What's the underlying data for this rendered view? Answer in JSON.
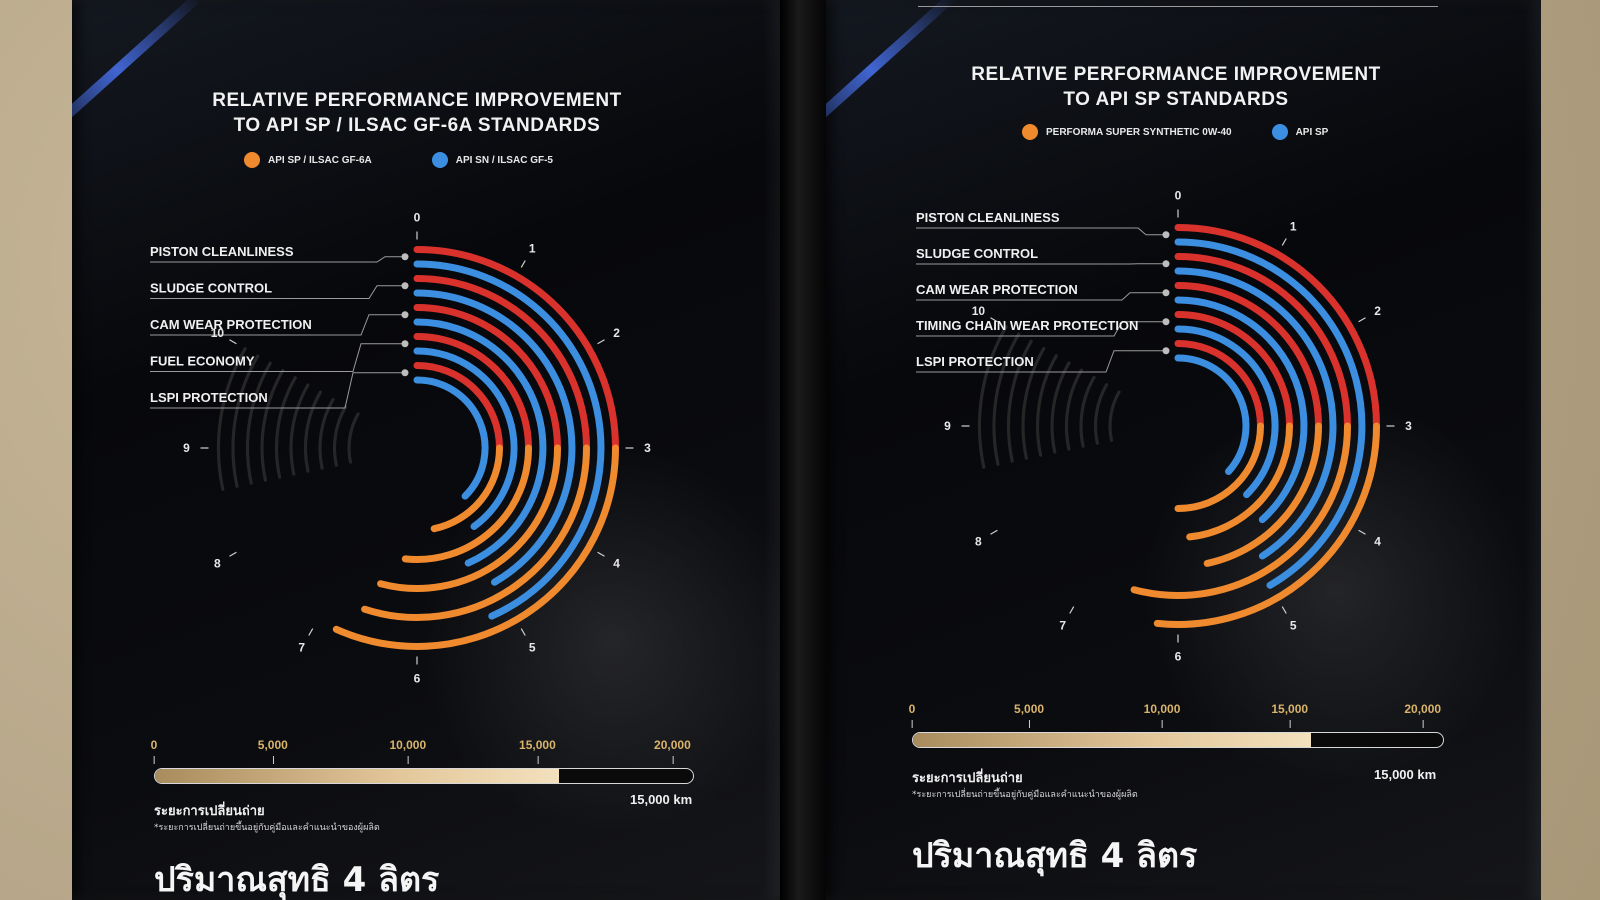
{
  "colors": {
    "orange": "#f08a2e",
    "blue": "#3c8fe0",
    "red": "#d9322c",
    "background": "#0b0c10"
  },
  "chart_data": [
    {
      "type": "radial-bar",
      "title_line1": "RELATIVE PERFORMANCE IMPROVEMENT",
      "title_line2": "TO API SP / ILSAC GF-6A STANDARDS",
      "legend": [
        {
          "label": "API SP / ILSAC GF-6A",
          "color": "#f08a2e"
        },
        {
          "label": "API SN / ILSAC GF-5",
          "color": "#3c8fe0"
        }
      ],
      "scale_max": 10,
      "ticks": [
        "0",
        "1",
        "2",
        "3",
        "4",
        "5",
        "6",
        "7",
        "8",
        "9",
        "10"
      ],
      "categories": [
        "PISTON CLEANLINESS",
        "SLUDGE CONTROL",
        "CAM WEAR PROTECTION",
        "FUEL ECONOMY",
        "LSPI PROTECTION"
      ],
      "series": [
        {
          "name": "API SP / ILSAC GF-6A",
          "values": [
            6.8,
            6.6,
            6.5,
            6.2,
            5.6
          ]
        },
        {
          "name": "API SN / ILSAC GF-5",
          "values": [
            5.2,
            5.0,
            5.2,
            4.8,
            4.5
          ]
        }
      ],
      "drain_interval": {
        "ticks": [
          "0",
          "5,000",
          "10,000",
          "15,000",
          "20,000"
        ],
        "max": 20000,
        "value": 15000,
        "caption": "ระยะการเปลี่ยนถ่าย",
        "note": "*ระยะการเปลี่ยนถ่ายขึ้นอยู่กับคู่มือและคำแนะนำของผู้ผลิต",
        "value_label": "15,000 km"
      },
      "footer": "ปริมาณสุทธิ 4 ลิตร"
    },
    {
      "type": "radial-bar",
      "title_line1": "RELATIVE PERFORMANCE IMPROVEMENT",
      "title_line2": "TO API SP STANDARDS",
      "legend": [
        {
          "label": "PERFORMA SUPER SYNTHETIC 0W-40",
          "color": "#f08a2e"
        },
        {
          "label": "API SP",
          "color": "#3c8fe0"
        }
      ],
      "scale_max": 10,
      "ticks": [
        "0",
        "1",
        "2",
        "3",
        "4",
        "5",
        "6",
        "7",
        "8",
        "9",
        "10"
      ],
      "categories": [
        "PISTON CLEANLINESS",
        "SLUDGE CONTROL",
        "CAM WEAR PROTECTION",
        "TIMING CHAIN WEAR PROTECTION",
        "LSPI PROTECTION"
      ],
      "series": [
        {
          "name": "PERFORMA SUPER SYNTHETIC 0W-40",
          "values": [
            6.2,
            6.5,
            5.6,
            5.8,
            6.0
          ]
        },
        {
          "name": "API SP",
          "values": [
            5.0,
            4.9,
            4.6,
            4.5,
            4.4
          ]
        }
      ],
      "drain_interval": {
        "ticks": [
          "0",
          "5,000",
          "10,000",
          "15,000",
          "20,000"
        ],
        "max": 20000,
        "value": 15000,
        "caption": "ระยะการเปลี่ยนถ่าย",
        "note": "*ระยะการเปลี่ยนถ่ายขึ้นอยู่กับคู่มือและคำแนะนำของผู้ผลิต",
        "value_label": "15,000 km"
      },
      "footer": "ปริมาณสุทธิ 4 ลิตร"
    }
  ]
}
